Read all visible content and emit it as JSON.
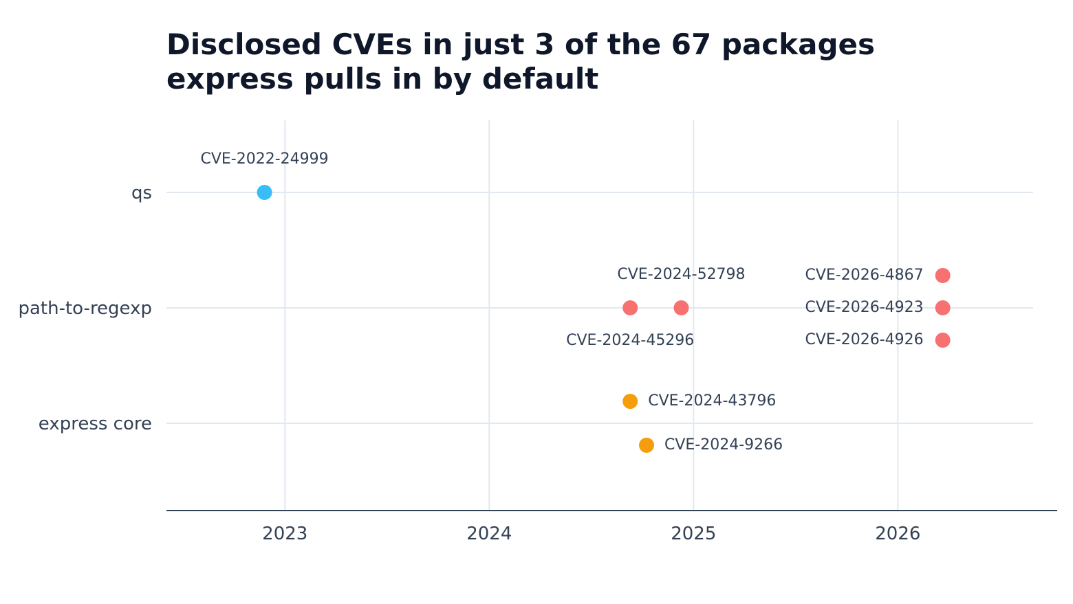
{
  "chart_data": {
    "type": "scatter",
    "title_lines": [
      "Disclosed CVEs in just 3 of the 67 packages",
      "express pulls in by default"
    ],
    "xlabel": "",
    "ylabel": "",
    "x_ticks": [
      2023,
      2024,
      2025,
      2026
    ],
    "xlim": [
      2022.42,
      2026.78
    ],
    "categories": [
      "qs",
      "path-to-regexp",
      "express core"
    ],
    "grid": true,
    "colors": {
      "qs": "#38bdf8",
      "path-to-regexp": "#f87171",
      "express core": "#f59e0b"
    },
    "points": [
      {
        "category": "qs",
        "x": 2022.9,
        "offset": 0,
        "label": "CVE-2022-24999",
        "label_pos": "above"
      },
      {
        "category": "path-to-regexp",
        "x": 2024.69,
        "offset": 0,
        "label": "CVE-2024-45296",
        "label_pos": "below"
      },
      {
        "category": "path-to-regexp",
        "x": 2024.94,
        "offset": 0,
        "label": "CVE-2024-52798",
        "label_pos": "above"
      },
      {
        "category": "path-to-regexp",
        "x": 2026.22,
        "offset": 0.28,
        "label": "CVE-2026-4867",
        "label_pos": "left"
      },
      {
        "category": "path-to-regexp",
        "x": 2026.22,
        "offset": 0,
        "label": "CVE-2026-4923",
        "label_pos": "left"
      },
      {
        "category": "path-to-regexp",
        "x": 2026.22,
        "offset": -0.28,
        "label": "CVE-2026-4926",
        "label_pos": "left"
      },
      {
        "category": "express core",
        "x": 2024.69,
        "offset": 0.19,
        "label": "CVE-2024-43796",
        "label_pos": "right"
      },
      {
        "category": "express core",
        "x": 2024.77,
        "offset": -0.19,
        "label": "CVE-2024-9266",
        "label_pos": "right"
      }
    ]
  }
}
